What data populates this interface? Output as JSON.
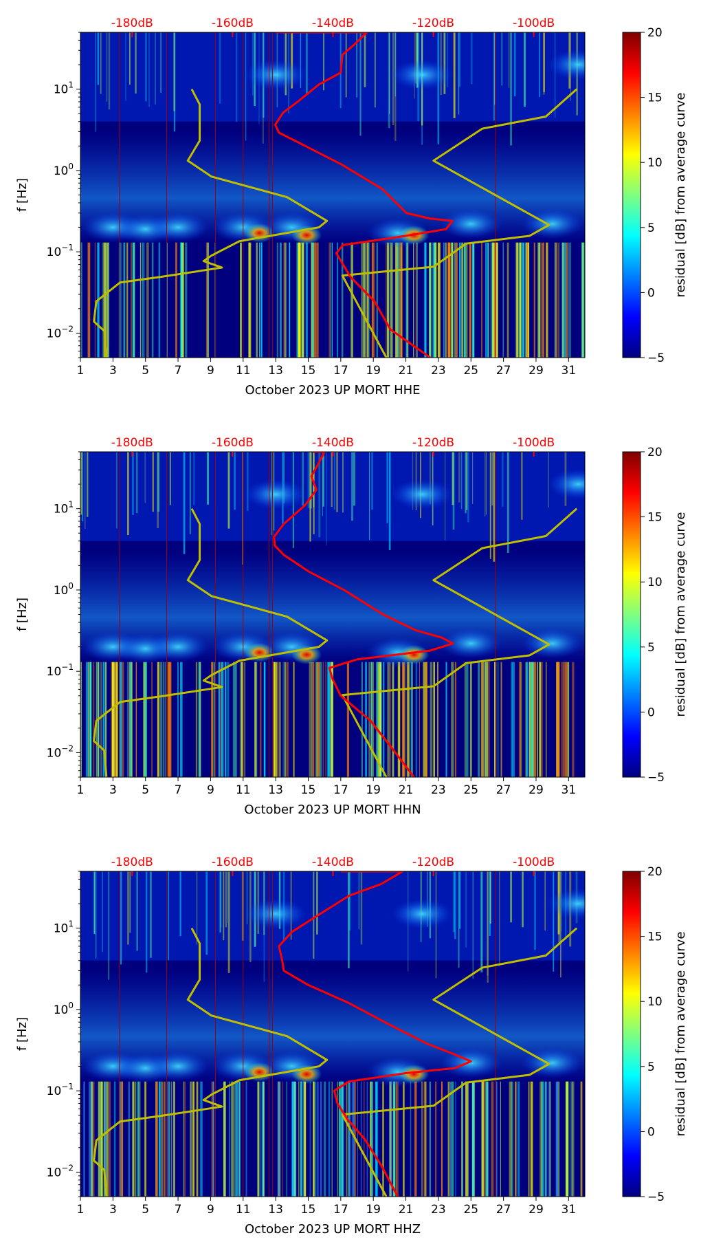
{
  "chart_data": [
    {
      "type": "heatmap",
      "xlabel": "October 2023 UP MORT  HHE",
      "ylabel": "f [Hz]",
      "xlim": [
        1,
        32
      ],
      "ylim": [
        0.005,
        50
      ],
      "yscale": "log",
      "xticks": [
        "1",
        "3",
        "5",
        "7",
        "9",
        "11",
        "13",
        "15",
        "17",
        "19",
        "21",
        "23",
        "25",
        "27",
        "29",
        "31"
      ],
      "yticks": [
        {
          "v": 10,
          "base": "10",
          "exp": "1"
        },
        {
          "v": 1,
          "base": "10",
          "exp": "0"
        },
        {
          "v": 0.1,
          "base": "10",
          "exp": "−1"
        },
        {
          "v": 0.01,
          "base": "10",
          "exp": "−2"
        }
      ],
      "top_axis": {
        "labels": [
          "-180dB",
          "-160dB",
          "-140dB",
          "-120dB",
          "-100dB"
        ],
        "dB": [
          -180,
          -160,
          -140,
          -120,
          -100
        ]
      },
      "colorbar": {
        "label": "residual [dB] from average curve",
        "range": [
          -5,
          20
        ],
        "ticks": [
          "−5",
          "0",
          "5",
          "10",
          "15",
          "20"
        ]
      },
      "red_curve": [
        [
          13.0,
          50
        ],
        [
          18.6,
          50
        ],
        [
          17.85,
          35.6
        ],
        [
          17.1,
          26.5
        ],
        [
          17.0,
          16
        ],
        [
          15.65,
          11.4
        ],
        [
          14.43,
          7.2
        ],
        [
          13.46,
          5.15
        ],
        [
          12.97,
          3.66
        ],
        [
          13.2,
          2.92
        ],
        [
          14.68,
          2.07
        ],
        [
          17.1,
          1.17
        ],
        [
          19.56,
          0.59
        ],
        [
          21.03,
          0.3
        ],
        [
          22.5,
          0.256
        ],
        [
          23.86,
          0.24
        ],
        [
          23.47,
          0.19
        ],
        [
          20.54,
          0.152
        ],
        [
          17.12,
          0.121
        ],
        [
          16.73,
          0.096
        ],
        [
          17.6,
          0.049
        ],
        [
          19.07,
          0.0246
        ],
        [
          20.05,
          0.0111
        ],
        [
          22.5,
          0.005
        ]
      ],
      "yellow_low": [
        [
          7.84,
          10
        ],
        [
          8.33,
          6.5
        ],
        [
          8.33,
          2.33
        ],
        [
          7.6,
          1.32
        ],
        [
          9.06,
          0.84
        ],
        [
          13.7,
          0.47
        ],
        [
          16.15,
          0.24
        ],
        [
          15.66,
          0.2
        ],
        [
          10.77,
          0.135
        ],
        [
          9.06,
          0.09
        ],
        [
          8.57,
          0.077
        ],
        [
          9.7,
          0.064
        ],
        [
          5.9,
          0.049
        ],
        [
          3.44,
          0.042
        ],
        [
          1.98,
          0.0246
        ],
        [
          1.83,
          0.0139
        ],
        [
          2.47,
          0.0106
        ],
        [
          2.6,
          0.005
        ]
      ],
      "yellow_high": [
        [
          31.5,
          10
        ],
        [
          29.6,
          4.6
        ],
        [
          25.7,
          3.27
        ],
        [
          22.7,
          1.32
        ],
        [
          29.8,
          0.214
        ],
        [
          28.6,
          0.157
        ],
        [
          24.7,
          0.126
        ],
        [
          22.7,
          0.0655
        ],
        [
          17.1,
          0.051
        ],
        [
          19.8,
          0.005
        ]
      ]
    },
    {
      "type": "heatmap",
      "xlabel": "October 2023 UP MORT  HHN",
      "ylabel": "f [Hz]",
      "xlim": [
        1,
        32
      ],
      "ylim": [
        0.005,
        50
      ],
      "yscale": "log",
      "xticks": [
        "1",
        "3",
        "5",
        "7",
        "9",
        "11",
        "13",
        "15",
        "17",
        "19",
        "21",
        "23",
        "25",
        "27",
        "29",
        "31"
      ],
      "yticks": [
        {
          "v": 10,
          "base": "10",
          "exp": "1"
        },
        {
          "v": 1,
          "base": "10",
          "exp": "0"
        },
        {
          "v": 0.1,
          "base": "10",
          "exp": "−1"
        },
        {
          "v": 0.01,
          "base": "10",
          "exp": "−2"
        }
      ],
      "top_axis": {
        "labels": [
          "-180dB",
          "-160dB",
          "-140dB",
          "-120dB",
          "-100dB"
        ],
        "dB": [
          -180,
          -160,
          -140,
          -120,
          -100
        ]
      },
      "colorbar": {
        "label": "residual [dB] from average curve",
        "range": [
          -5,
          20
        ],
        "ticks": [
          "−5",
          "0",
          "5",
          "10",
          "15",
          "20"
        ]
      },
      "red_curve": [
        [
          15.3,
          50
        ],
        [
          16.0,
          50
        ],
        [
          15.6,
          35
        ],
        [
          15.2,
          25
        ],
        [
          15.5,
          17
        ],
        [
          14.8,
          11
        ],
        [
          13.5,
          6.5
        ],
        [
          12.9,
          4.5
        ],
        [
          12.95,
          3.5
        ],
        [
          13.5,
          2.7
        ],
        [
          15.0,
          1.7
        ],
        [
          17.2,
          1.0
        ],
        [
          19.6,
          0.5
        ],
        [
          21.6,
          0.32
        ],
        [
          23.2,
          0.26
        ],
        [
          23.9,
          0.22
        ],
        [
          22.5,
          0.18
        ],
        [
          18.0,
          0.14
        ],
        [
          16.3,
          0.11
        ],
        [
          16.5,
          0.08
        ],
        [
          17.0,
          0.05
        ],
        [
          18.8,
          0.025
        ],
        [
          20.2,
          0.011
        ],
        [
          21.5,
          0.005
        ]
      ],
      "yellow_low": [
        [
          7.84,
          10
        ],
        [
          8.33,
          6.5
        ],
        [
          8.33,
          2.33
        ],
        [
          7.6,
          1.32
        ],
        [
          9.06,
          0.84
        ],
        [
          13.7,
          0.47
        ],
        [
          16.15,
          0.24
        ],
        [
          15.66,
          0.2
        ],
        [
          10.77,
          0.135
        ],
        [
          9.06,
          0.09
        ],
        [
          8.57,
          0.077
        ],
        [
          9.7,
          0.064
        ],
        [
          5.9,
          0.049
        ],
        [
          3.44,
          0.042
        ],
        [
          1.98,
          0.0246
        ],
        [
          1.83,
          0.0139
        ],
        [
          2.47,
          0.0106
        ],
        [
          2.6,
          0.005
        ]
      ],
      "yellow_high": [
        [
          31.5,
          10
        ],
        [
          29.6,
          4.6
        ],
        [
          25.7,
          3.27
        ],
        [
          22.7,
          1.32
        ],
        [
          29.8,
          0.214
        ],
        [
          28.6,
          0.157
        ],
        [
          24.7,
          0.126
        ],
        [
          22.7,
          0.0655
        ],
        [
          17.1,
          0.051
        ],
        [
          19.8,
          0.005
        ]
      ]
    },
    {
      "type": "heatmap",
      "xlabel": "October 2023 UP MORT  HHZ",
      "ylabel": "f [Hz]",
      "xlim": [
        1,
        32
      ],
      "ylim": [
        0.005,
        50
      ],
      "yscale": "log",
      "xticks": [
        "1",
        "3",
        "5",
        "7",
        "9",
        "11",
        "13",
        "15",
        "17",
        "19",
        "21",
        "23",
        "25",
        "27",
        "29",
        "31"
      ],
      "yticks": [
        {
          "v": 10,
          "base": "10",
          "exp": "1"
        },
        {
          "v": 1,
          "base": "10",
          "exp": "0"
        },
        {
          "v": 0.1,
          "base": "10",
          "exp": "−1"
        },
        {
          "v": 0.01,
          "base": "10",
          "exp": "−2"
        }
      ],
      "top_axis": {
        "labels": [
          "-180dB",
          "-160dB",
          "-140dB",
          "-120dB",
          "-100dB"
        ],
        "dB": [
          -180,
          -160,
          -140,
          -120,
          -100
        ]
      },
      "colorbar": {
        "label": "residual [dB] from average curve",
        "range": [
          -5,
          20
        ],
        "ticks": [
          "−5",
          "0",
          "5",
          "10",
          "15",
          "20"
        ]
      },
      "red_curve": [
        [
          17.0,
          50
        ],
        [
          20.8,
          50
        ],
        [
          19.5,
          35
        ],
        [
          17.5,
          25
        ],
        [
          15.5,
          14
        ],
        [
          14.0,
          9
        ],
        [
          13.2,
          6
        ],
        [
          13.4,
          4
        ],
        [
          13.5,
          3
        ],
        [
          15.0,
          2
        ],
        [
          17.5,
          1.2
        ],
        [
          20.0,
          0.65
        ],
        [
          22.3,
          0.38
        ],
        [
          24.0,
          0.28
        ],
        [
          25.0,
          0.23
        ],
        [
          24.0,
          0.19
        ],
        [
          21.0,
          0.165
        ],
        [
          17.5,
          0.13
        ],
        [
          16.6,
          0.1
        ],
        [
          16.8,
          0.07
        ],
        [
          17.4,
          0.045
        ],
        [
          18.5,
          0.025
        ],
        [
          19.5,
          0.012
        ],
        [
          20.5,
          0.005
        ]
      ],
      "yellow_low": [
        [
          7.84,
          10
        ],
        [
          8.33,
          6.5
        ],
        [
          8.33,
          2.33
        ],
        [
          7.6,
          1.32
        ],
        [
          9.06,
          0.84
        ],
        [
          13.7,
          0.47
        ],
        [
          16.15,
          0.24
        ],
        [
          15.66,
          0.2
        ],
        [
          10.77,
          0.135
        ],
        [
          9.06,
          0.09
        ],
        [
          8.57,
          0.077
        ],
        [
          9.7,
          0.064
        ],
        [
          5.9,
          0.049
        ],
        [
          3.44,
          0.042
        ],
        [
          1.98,
          0.0246
        ],
        [
          1.83,
          0.0139
        ],
        [
          2.47,
          0.0106
        ],
        [
          2.6,
          0.005
        ]
      ],
      "yellow_high": [
        [
          31.5,
          10
        ],
        [
          29.6,
          4.6
        ],
        [
          25.7,
          3.27
        ],
        [
          22.7,
          1.32
        ],
        [
          29.8,
          0.214
        ],
        [
          28.6,
          0.157
        ],
        [
          24.7,
          0.126
        ],
        [
          22.7,
          0.0655
        ],
        [
          17.1,
          0.051
        ],
        [
          19.8,
          0.005
        ]
      ]
    }
  ],
  "colors": {
    "red_curve": "#ff0000",
    "yellow_curve": "#bfbf00",
    "background": "#00007f"
  }
}
